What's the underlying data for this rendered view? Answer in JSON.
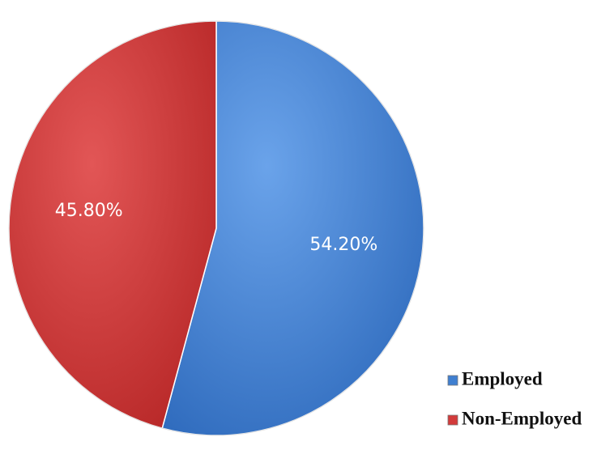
{
  "chart_data": {
    "type": "pie",
    "slices": [
      {
        "label": "Employed",
        "value": 54.2,
        "display": "54.20%",
        "color": "#3f7fd0"
      },
      {
        "label": "Non-Employed",
        "value": 45.8,
        "display": "45.80%",
        "color": "#d23a3a"
      }
    ],
    "start": "12 o'clock",
    "direction": "clockwise",
    "legend": {
      "placement": "bottom-right"
    }
  }
}
